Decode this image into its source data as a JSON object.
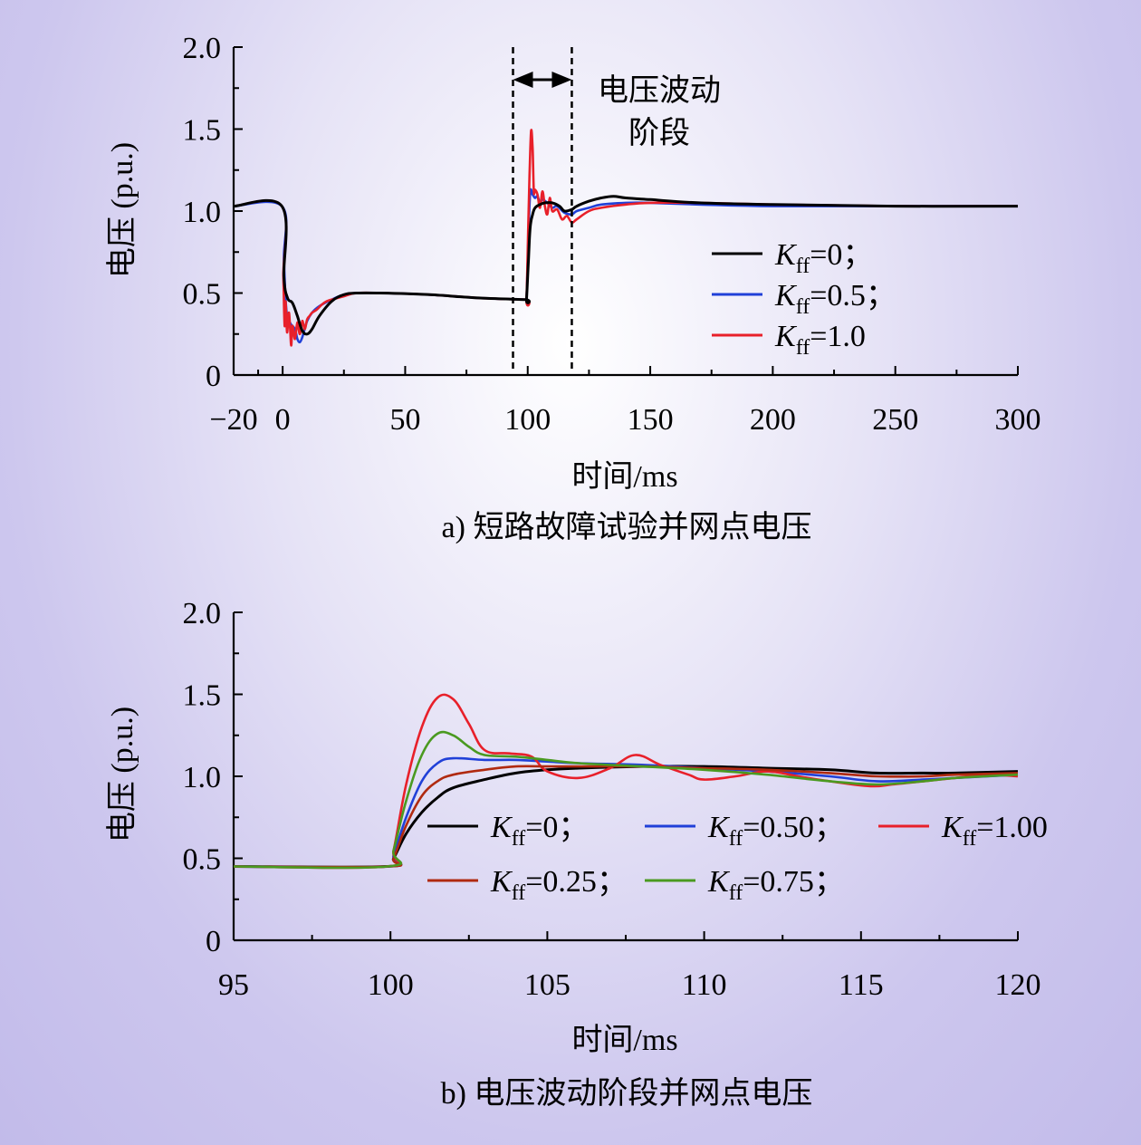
{
  "chart_data": [
    {
      "type": "line",
      "caption": "a) 短路故障试验并网点电压",
      "xlabel": "时间/ms",
      "ylabel": "电压 (p.u.)",
      "xlim": [
        -20,
        300
      ],
      "ylim": [
        0,
        2.0
      ],
      "xticks": [
        -20,
        0,
        50,
        100,
        150,
        200,
        250,
        300
      ],
      "xtick_labels": [
        "−20",
        "0",
        "50",
        "100",
        "150",
        "200",
        "250",
        "300"
      ],
      "yticks": [
        0,
        0.5,
        1.0,
        1.5,
        2.0
      ],
      "ytick_labels": [
        "0",
        "0.5",
        "1.0",
        "1.5",
        "2.0"
      ],
      "annotation": {
        "line1": "电压波动",
        "line2": "阶段",
        "x_start": 94,
        "x_end": 118
      },
      "series": [
        {
          "label_sym": "K",
          "label_sub": "ff",
          "label_rest": "=0；",
          "color": "#000000",
          "x": [
            -20,
            -0.3,
            0.5,
            2,
            4,
            6,
            8,
            10,
            12,
            15,
            20,
            25,
            30,
            40,
            60,
            80,
            99,
            99.5,
            100.3,
            101,
            102,
            103,
            105,
            107,
            110,
            113,
            115,
            118,
            120,
            125,
            130,
            135,
            140,
            150,
            170,
            200,
            250,
            300
          ],
          "y": [
            1.03,
            1.03,
            0.6,
            0.47,
            0.44,
            0.36,
            0.27,
            0.25,
            0.28,
            0.36,
            0.45,
            0.49,
            0.5,
            0.5,
            0.49,
            0.47,
            0.46,
            0.46,
            0.7,
            0.9,
            0.98,
            1.02,
            1.04,
            1.05,
            1.05,
            1.03,
            1.0,
            1.01,
            1.03,
            1.06,
            1.08,
            1.09,
            1.08,
            1.07,
            1.05,
            1.04,
            1.03,
            1.03
          ]
        },
        {
          "label_sym": "K",
          "label_sub": "ff",
          "label_rest": "=0.5；",
          "color": "#2040d8",
          "x": [
            -20,
            -0.3,
            0.5,
            1.5,
            3,
            5,
            6,
            7,
            8,
            9,
            10,
            12,
            15,
            20,
            25,
            30,
            40,
            60,
            80,
            99,
            99.5,
            100.2,
            101,
            102,
            103,
            104,
            105,
            106,
            108,
            110,
            112,
            115,
            118,
            120,
            125,
            130,
            140,
            150,
            170,
            200,
            250,
            300
          ],
          "y": [
            1.03,
            1.03,
            0.7,
            0.4,
            0.32,
            0.28,
            0.22,
            0.2,
            0.23,
            0.28,
            0.33,
            0.38,
            0.42,
            0.46,
            0.49,
            0.5,
            0.5,
            0.49,
            0.47,
            0.46,
            0.46,
            0.8,
            1.11,
            1.1,
            1.08,
            1.09,
            1.05,
            1.07,
            1.05,
            1.02,
            1.03,
            0.99,
            0.98,
            1.0,
            1.02,
            1.04,
            1.05,
            1.05,
            1.04,
            1.03,
            1.03,
            1.03
          ]
        },
        {
          "label_sym": "K",
          "label_sub": "ff",
          "label_rest": "=1.0",
          "color": "#e8202a",
          "x": [
            -20,
            -0.3,
            0.3,
            0.8,
            1.2,
            1.8,
            2.5,
            3,
            3.5,
            4,
            5,
            6,
            7,
            8,
            9,
            10,
            11,
            12,
            14,
            16,
            18,
            20,
            25,
            30,
            40,
            60,
            80,
            99,
            99.5,
            100.2,
            100.8,
            101.4,
            102,
            102.5,
            103,
            104,
            105,
            106,
            107,
            108,
            109,
            110,
            112,
            114,
            116,
            118,
            120,
            125,
            130,
            140,
            150,
            170,
            200,
            250,
            300
          ],
          "y": [
            1.03,
            1.03,
            0.6,
            0.3,
            0.45,
            0.26,
            0.38,
            0.3,
            0.18,
            0.3,
            0.22,
            0.32,
            0.25,
            0.33,
            0.28,
            0.34,
            0.36,
            0.38,
            0.4,
            0.43,
            0.45,
            0.46,
            0.48,
            0.5,
            0.5,
            0.49,
            0.47,
            0.46,
            0.46,
            0.9,
            1.25,
            1.49,
            1.38,
            1.12,
            1.13,
            1.1,
            1.02,
            1.12,
            1.03,
            0.98,
            1.08,
            1.0,
            1.01,
            0.95,
            0.97,
            0.93,
            0.95,
            1.0,
            1.02,
            1.04,
            1.05,
            1.05,
            1.04,
            1.03,
            1.03
          ]
        }
      ]
    },
    {
      "type": "line",
      "caption": "b) 电压波动阶段并网点电压",
      "xlabel": "时间/ms",
      "ylabel": "电压 (p.u.)",
      "xlim": [
        95,
        120
      ],
      "ylim": [
        0,
        2.0
      ],
      "xticks": [
        95,
        100,
        105,
        110,
        115,
        120
      ],
      "xtick_labels": [
        "95",
        "100",
        "105",
        "110",
        "115",
        "120"
      ],
      "yticks": [
        0,
        0.5,
        1.0,
        1.5,
        2.0
      ],
      "ytick_labels": [
        "0",
        "0.5",
        "1.0",
        "1.5",
        "2.0"
      ],
      "series": [
        {
          "label_sym": "K",
          "label_sub": "ff",
          "label_rest": "=0；",
          "color": "#000000",
          "x": [
            95,
            99.9,
            100.1,
            100.5,
            101,
            101.5,
            102,
            103,
            104,
            105,
            106,
            108,
            110,
            112,
            114,
            115.5,
            117,
            118,
            120
          ],
          "y": [
            0.45,
            0.45,
            0.5,
            0.65,
            0.78,
            0.87,
            0.93,
            0.98,
            1.02,
            1.04,
            1.05,
            1.06,
            1.06,
            1.05,
            1.04,
            1.02,
            1.02,
            1.02,
            1.03
          ]
        },
        {
          "label_sym": "K",
          "label_sub": "ff",
          "label_rest": "=0.50；",
          "color": "#2040d8",
          "x": [
            95,
            99.9,
            100.1,
            100.5,
            101,
            101.5,
            102,
            103,
            104,
            105,
            106,
            108,
            110,
            112,
            114,
            115.5,
            117,
            118,
            120
          ],
          "y": [
            0.45,
            0.45,
            0.52,
            0.75,
            0.97,
            1.08,
            1.11,
            1.1,
            1.1,
            1.09,
            1.08,
            1.07,
            1.05,
            1.03,
            1.0,
            0.97,
            0.98,
            0.99,
            1.01
          ]
        },
        {
          "label_sym": "K",
          "label_sub": "ff",
          "label_rest": "=1.00",
          "color": "#e8202a",
          "x": [
            95,
            99.9,
            100.1,
            100.5,
            101,
            101.5,
            102,
            102.5,
            103,
            103.8,
            104.5,
            105,
            106,
            107,
            107.8,
            108.6,
            109.5,
            110,
            111,
            112,
            113,
            114,
            115.3,
            116,
            117,
            118,
            119,
            120
          ],
          "y": [
            0.45,
            0.45,
            0.55,
            0.95,
            1.3,
            1.48,
            1.47,
            1.32,
            1.16,
            1.14,
            1.12,
            1.03,
            0.99,
            1.05,
            1.13,
            1.07,
            1.01,
            0.98,
            1.0,
            1.03,
            1.0,
            0.97,
            0.94,
            0.95,
            0.97,
            0.99,
            1.01,
            1.0
          ]
        },
        {
          "label_sym": "K",
          "label_sub": "ff",
          "label_rest": "=0.25；",
          "color": "#b02a10",
          "x": [
            95,
            99.9,
            100.1,
            100.5,
            101,
            101.5,
            102,
            103,
            104,
            105,
            106,
            108,
            110,
            112,
            114,
            115.5,
            117,
            118,
            120
          ],
          "y": [
            0.45,
            0.45,
            0.5,
            0.7,
            0.88,
            0.97,
            1.01,
            1.04,
            1.06,
            1.06,
            1.06,
            1.06,
            1.05,
            1.04,
            1.02,
            1.0,
            1.0,
            1.01,
            1.02
          ]
        },
        {
          "label_sym": "K",
          "label_sub": "ff",
          "label_rest": "=0.75；",
          "color": "#4a9a20",
          "x": [
            95,
            99.9,
            100.1,
            100.5,
            101,
            101.5,
            102,
            102.5,
            103,
            104,
            105,
            106,
            108,
            110,
            112,
            114,
            115.5,
            117,
            118,
            120
          ],
          "y": [
            0.45,
            0.45,
            0.55,
            0.85,
            1.13,
            1.26,
            1.25,
            1.18,
            1.13,
            1.12,
            1.1,
            1.08,
            1.06,
            1.04,
            1.01,
            0.97,
            0.95,
            0.97,
            0.99,
            1.01
          ]
        }
      ]
    }
  ]
}
